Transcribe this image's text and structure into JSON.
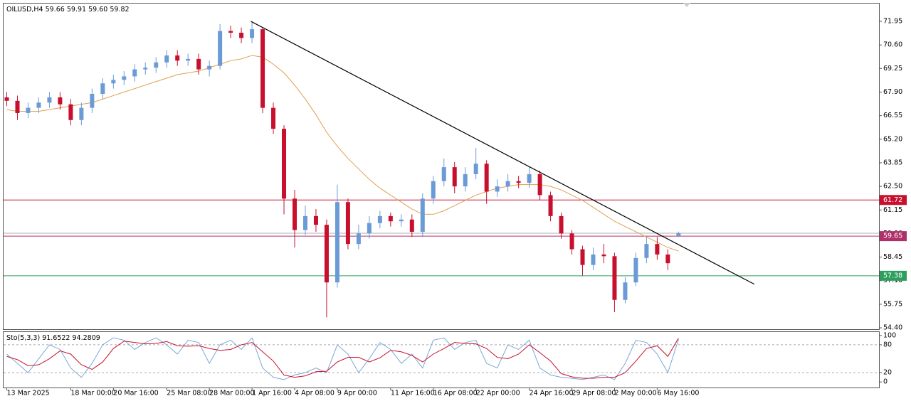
{
  "chart_data": [
    {
      "type": "candlestick",
      "title": "OILUSD,H4",
      "ohlc_labels": [
        "59.66",
        "59.91",
        "59.60",
        "59.82"
      ],
      "categories": [
        "13 Mar 2025",
        null,
        null,
        null,
        null,
        null,
        "18 Mar 00:00",
        null,
        null,
        null,
        "20 Mar 16:00",
        null,
        null,
        null,
        null,
        "25 Mar 08:00",
        null,
        null,
        null,
        "28 Mar 00:00",
        null,
        null,
        null,
        "1 Apr 16:00",
        null,
        null,
        null,
        "4 Apr 08:00",
        null,
        null,
        null,
        "9 Apr 00:00",
        null,
        null,
        null,
        null,
        "11 Apr 16:00",
        null,
        null,
        null,
        "16 Apr 08:00",
        null,
        null,
        null,
        "22 Apr 00:00",
        null,
        null,
        null,
        null,
        "24 Apr 16:00",
        null,
        null,
        null,
        "29 Apr 08:00",
        null,
        null,
        null,
        "2 May 00:00",
        null,
        null,
        null,
        "6 May 16:00",
        null,
        null
      ],
      "open": [
        67.6,
        67.4,
        66.7,
        67.0,
        67.3,
        67.6,
        67.2,
        66.3,
        67.0,
        67.8,
        68.4,
        68.6,
        68.8,
        69.2,
        69.3,
        69.6,
        70.0,
        69.7,
        69.8,
        69.2,
        69.4,
        71.4,
        71.3,
        71.0,
        71.5,
        67.0,
        65.8,
        61.8,
        60.0,
        60.8,
        60.3,
        57.0,
        61.6,
        59.2,
        59.8,
        60.4,
        60.8,
        60.5,
        60.6,
        59.9,
        61.8,
        62.8,
        63.6,
        62.5,
        63.2,
        63.8,
        62.2,
        62.5,
        62.8,
        62.7,
        63.2,
        62.0,
        60.8,
        59.8,
        58.9,
        58.0,
        58.6,
        58.5,
        56.0,
        57.0,
        58.4,
        59.2,
        58.6,
        59.66
      ],
      "high": [
        67.9,
        67.7,
        67.3,
        67.6,
        67.9,
        67.9,
        67.5,
        67.3,
        68.1,
        68.7,
        68.9,
        69.1,
        69.5,
        69.6,
        69.9,
        70.3,
        70.3,
        70.1,
        70.1,
        69.7,
        71.8,
        71.7,
        71.6,
        71.95,
        71.6,
        67.3,
        66.0,
        62.3,
        61.4,
        61.2,
        60.6,
        62.6,
        61.8,
        60.3,
        60.8,
        61.1,
        61.0,
        60.9,
        60.9,
        62.1,
        63.1,
        64.1,
        63.9,
        63.6,
        64.7,
        64.0,
        62.9,
        63.2,
        63.1,
        63.6,
        63.4,
        62.2,
        61.0,
        60.0,
        59.1,
        59.0,
        59.2,
        58.7,
        57.3,
        58.7,
        59.6,
        59.6,
        58.9,
        59.91
      ],
      "low": [
        67.1,
        66.3,
        66.4,
        66.7,
        67.0,
        66.9,
        66.0,
        66.0,
        66.7,
        67.5,
        68.1,
        68.3,
        68.5,
        68.9,
        69.0,
        69.3,
        69.4,
        69.4,
        68.9,
        68.8,
        69.2,
        71.0,
        70.7,
        70.7,
        66.7,
        65.5,
        60.9,
        59.0,
        59.7,
        59.9,
        55.0,
        56.7,
        58.9,
        58.9,
        59.5,
        60.1,
        60.2,
        60.2,
        59.6,
        59.6,
        61.5,
        62.5,
        62.1,
        62.2,
        62.9,
        61.5,
        61.9,
        62.2,
        62.4,
        62.4,
        61.7,
        60.5,
        59.5,
        58.6,
        57.4,
        57.7,
        58.1,
        55.3,
        55.8,
        56.8,
        58.1,
        58.3,
        57.7,
        59.6
      ],
      "close": [
        67.4,
        66.7,
        67.0,
        67.3,
        67.6,
        67.2,
        66.3,
        67.0,
        67.8,
        68.4,
        68.6,
        68.8,
        69.2,
        69.3,
        69.6,
        70.0,
        69.7,
        69.8,
        69.2,
        69.4,
        71.4,
        71.3,
        71.0,
        71.5,
        67.0,
        65.8,
        61.8,
        60.0,
        60.8,
        60.3,
        57.0,
        61.6,
        59.2,
        59.8,
        60.4,
        60.8,
        60.5,
        60.6,
        59.9,
        61.8,
        62.8,
        63.6,
        62.5,
        63.2,
        63.8,
        62.2,
        62.5,
        62.8,
        62.7,
        63.2,
        62.0,
        60.8,
        59.8,
        58.9,
        58.0,
        58.6,
        58.5,
        56.0,
        57.0,
        58.4,
        59.2,
        58.6,
        58.1,
        59.82
      ],
      "colors": {
        "up": "#6b9bd6",
        "down": "#c8102e"
      },
      "overlays": [
        {
          "color": "#e0a050",
          "values": [
            66.9,
            66.8,
            66.8,
            66.8,
            66.9,
            67.0,
            67.1,
            67.2,
            67.3,
            67.5,
            67.7,
            67.9,
            68.1,
            68.3,
            68.5,
            68.7,
            68.9,
            69.0,
            69.1,
            69.3,
            69.5,
            69.7,
            69.8,
            70.0,
            69.9,
            69.5,
            69.0,
            68.3,
            67.5,
            66.6,
            65.6,
            64.8,
            64.1,
            63.5,
            62.9,
            62.4,
            62.0,
            61.6,
            61.2,
            60.9,
            60.9,
            61.1,
            61.4,
            61.7,
            62.0,
            62.2,
            62.4,
            62.5,
            62.6,
            62.6,
            62.6,
            62.5,
            62.3,
            62.0,
            61.7,
            61.3,
            60.9,
            60.5,
            60.2,
            59.9,
            59.6,
            59.3,
            59.0,
            58.8
          ]
        }
      ],
      "trendline": {
        "color": "#000000",
        "x": [
          22.9,
          70.1
        ],
        "y": [
          71.95,
          56.9
        ]
      },
      "levels": [
        {
          "value": 61.72,
          "color": "#c8102e",
          "show_label": true
        },
        {
          "value": 59.82,
          "color": "#b0b0b0",
          "show_label": false
        },
        {
          "value": 59.65,
          "color": "#b0306a",
          "show_label": true
        },
        {
          "value": 57.38,
          "color": "#2e9e5e",
          "show_label": true
        }
      ],
      "xlim": [
        -0.3,
        81.8
      ],
      "ylim": [
        54.32,
        72.93
      ],
      "yticks": [
        71.95,
        {
          "value": 70.6,
          "label": "70.60"
        },
        69.25,
        {
          "value": 67.9,
          "label": "67.90"
        },
        66.55,
        {
          "value": 65.2,
          "label": "65.20"
        },
        63.85,
        {
          "value": 62.5,
          "label": "62.50"
        },
        61.15,
        {
          "value": 59.8,
          "label": "59.80"
        },
        58.45,
        {
          "value": 57.1,
          "label": "57.10"
        },
        55.75,
        {
          "value": 54.4,
          "label": "54.40"
        }
      ]
    },
    {
      "type": "line",
      "title": "Sto(5,3,3)",
      "series": [
        {
          "color": "#7aa7d8",
          "values": [
            60,
            40,
            20,
            50,
            80,
            70,
            30,
            10,
            40,
            80,
            95,
            90,
            70,
            85,
            95,
            80,
            60,
            90,
            85,
            40,
            80,
            90,
            70,
            95,
            30,
            10,
            5,
            15,
            20,
            30,
            20,
            80,
            60,
            20,
            50,
            85,
            70,
            40,
            60,
            30,
            90,
            95,
            70,
            85,
            90,
            40,
            30,
            80,
            70,
            90,
            30,
            15,
            10,
            8,
            5,
            10,
            15,
            5,
            40,
            90,
            85,
            60,
            20,
            91.6522
          ]
        },
        {
          "color": "#c8102e",
          "values": [
            55,
            48,
            35,
            37,
            50,
            67,
            60,
            37,
            27,
            43,
            72,
            88,
            85,
            82,
            83,
            87,
            78,
            77,
            78,
            72,
            68,
            70,
            80,
            85,
            65,
            45,
            15,
            10,
            13,
            22,
            23,
            43,
            53,
            53,
            43,
            52,
            68,
            65,
            57,
            43,
            60,
            72,
            85,
            83,
            82,
            72,
            53,
            50,
            60,
            80,
            63,
            45,
            18,
            11,
            8,
            8,
            10,
            10,
            20,
            45,
            72,
            78,
            55,
            94.2809
          ]
        }
      ],
      "levels": [
        20,
        80
      ],
      "xlim": [
        -0.3,
        81.8
      ],
      "ylim": [
        -12,
        109
      ],
      "yticks": [
        0,
        20,
        80,
        100
      ]
    }
  ]
}
